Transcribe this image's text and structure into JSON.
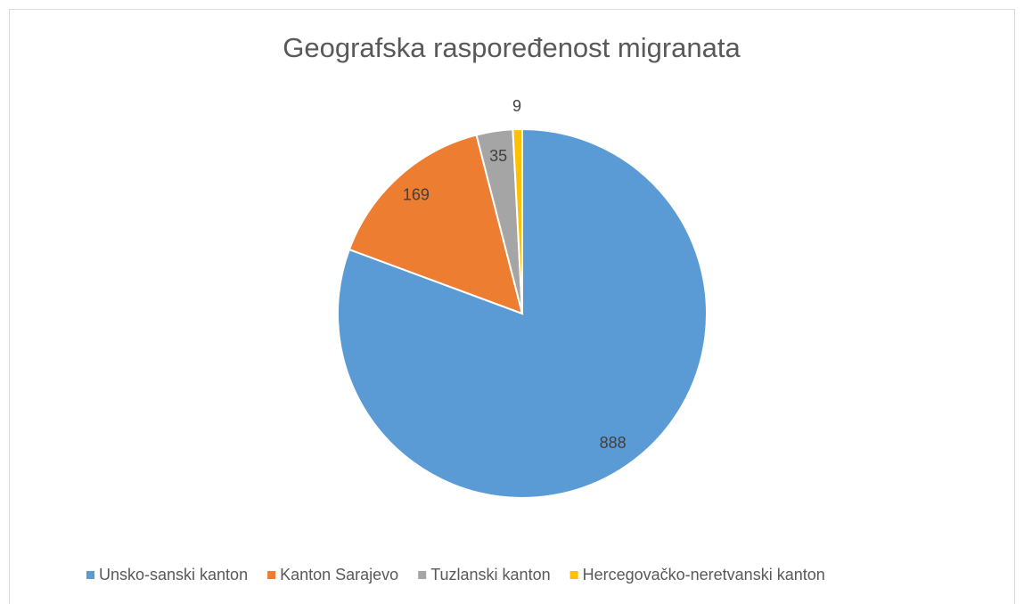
{
  "chart_data": {
    "type": "pie",
    "title": "Geografska raspoređenost migranata",
    "categories": [
      "Unsko-sanski kanton",
      "Kanton Sarajevo",
      "Tuzlanski kanton",
      "Hercegovačko-neretvanski kanton"
    ],
    "values": [
      888,
      169,
      35,
      9
    ],
    "colors": [
      "#5b9bd5",
      "#ed7d31",
      "#a5a5a5",
      "#ffc000"
    ],
    "legend": "bottom"
  }
}
